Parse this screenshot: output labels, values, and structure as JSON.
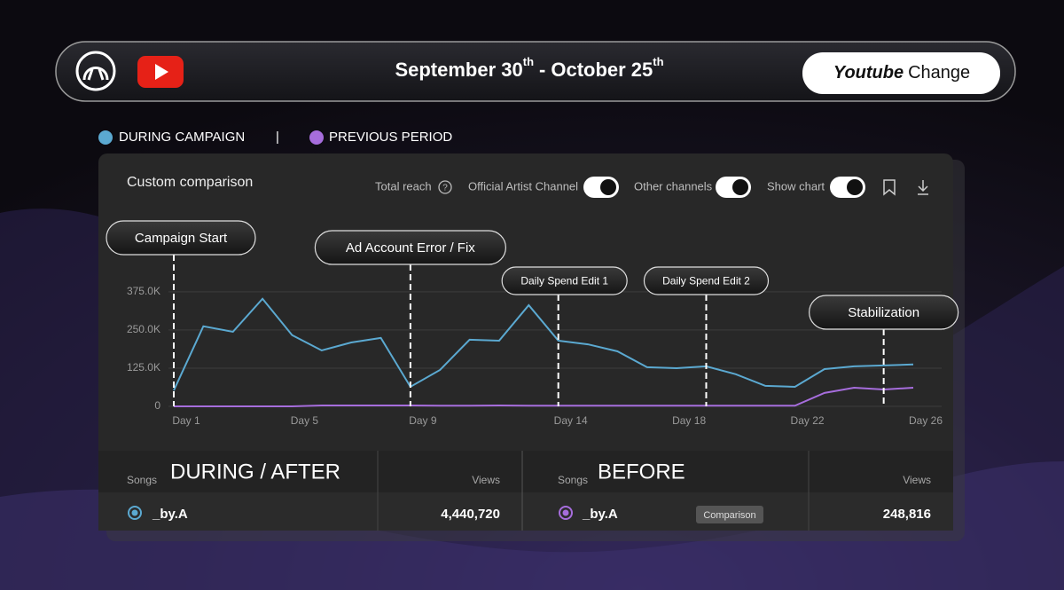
{
  "header": {
    "date_start": "September 30",
    "date_start_suffix": "th",
    "separator": "-",
    "date_end": "October 25",
    "date_end_suffix": "th",
    "button_bold": "Youtube",
    "button_text": "Change"
  },
  "legend_separator": "|",
  "panel": {
    "title": "Custom comparison",
    "controls": [
      "Total reach",
      "Official Artist Channel",
      "Other channels",
      "Show chart"
    ]
  },
  "chart_data": {
    "type": "line",
    "x": [
      1,
      2,
      3,
      4,
      5,
      6,
      7,
      8,
      9,
      10,
      11,
      12,
      13,
      14,
      15,
      16,
      17,
      18,
      19,
      20,
      21,
      22,
      23,
      24,
      25,
      26
    ],
    "xlim": [
      1,
      26
    ],
    "xticks": [
      {
        "value": 1,
        "label": "Day 1"
      },
      {
        "value": 5,
        "label": "Day 5"
      },
      {
        "value": 9,
        "label": "Day 9"
      },
      {
        "value": 14,
        "label": "Day 14"
      },
      {
        "value": 18,
        "label": "Day 18"
      },
      {
        "value": 22,
        "label": "Day 22"
      },
      {
        "value": 26,
        "label": "Day 26"
      }
    ],
    "ylim": [
      0,
      450000
    ],
    "yticks": [
      0,
      {
        "value": 125000,
        "label": "125.0K"
      },
      {
        "value": 250000,
        "label": "250.0K"
      },
      {
        "value": 375000,
        "label": "375.0K"
      }
    ],
    "grid": true,
    "series": [
      {
        "name": "DURING CAMPAIGN",
        "color": "#5ba9d1",
        "values": [
          52000,
          262000,
          244000,
          352000,
          233000,
          183000,
          209000,
          224000,
          64000,
          119000,
          218000,
          215000,
          331000,
          215000,
          203000,
          180000,
          128000,
          125000,
          131000,
          105000,
          67000,
          64000,
          122000,
          131000,
          134000,
          137000
        ]
      },
      {
        "name": "PREVIOUS PERIOD",
        "color": "#a66ddc",
        "values": [
          0,
          0,
          0,
          0,
          0,
          3000,
          3000,
          3000,
          3000,
          2000,
          2000,
          3000,
          2000,
          2000,
          2000,
          2000,
          2000,
          2000,
          2000,
          2000,
          2000,
          2000,
          44000,
          61000,
          55000,
          61000
        ]
      }
    ],
    "annotations": [
      {
        "x": 1,
        "label": "Campaign Start"
      },
      {
        "x": 9,
        "label": "Ad Account Error / Fix"
      },
      {
        "x": 14,
        "label": "Daily Spend Edit 1"
      },
      {
        "x": 19,
        "label": "Daily Spend Edit 2"
      },
      {
        "x": 25,
        "label": "Stabilization"
      }
    ]
  },
  "table": {
    "left": {
      "songs_header": "Songs",
      "title": "DURING / AFTER",
      "views_header": "Views",
      "song": "_by.A",
      "views": "4,440,720"
    },
    "right": {
      "songs_header": "Songs",
      "title": "BEFORE",
      "views_header": "Views",
      "song": "_by.A",
      "badge": "Comparison",
      "views": "248,816"
    }
  }
}
